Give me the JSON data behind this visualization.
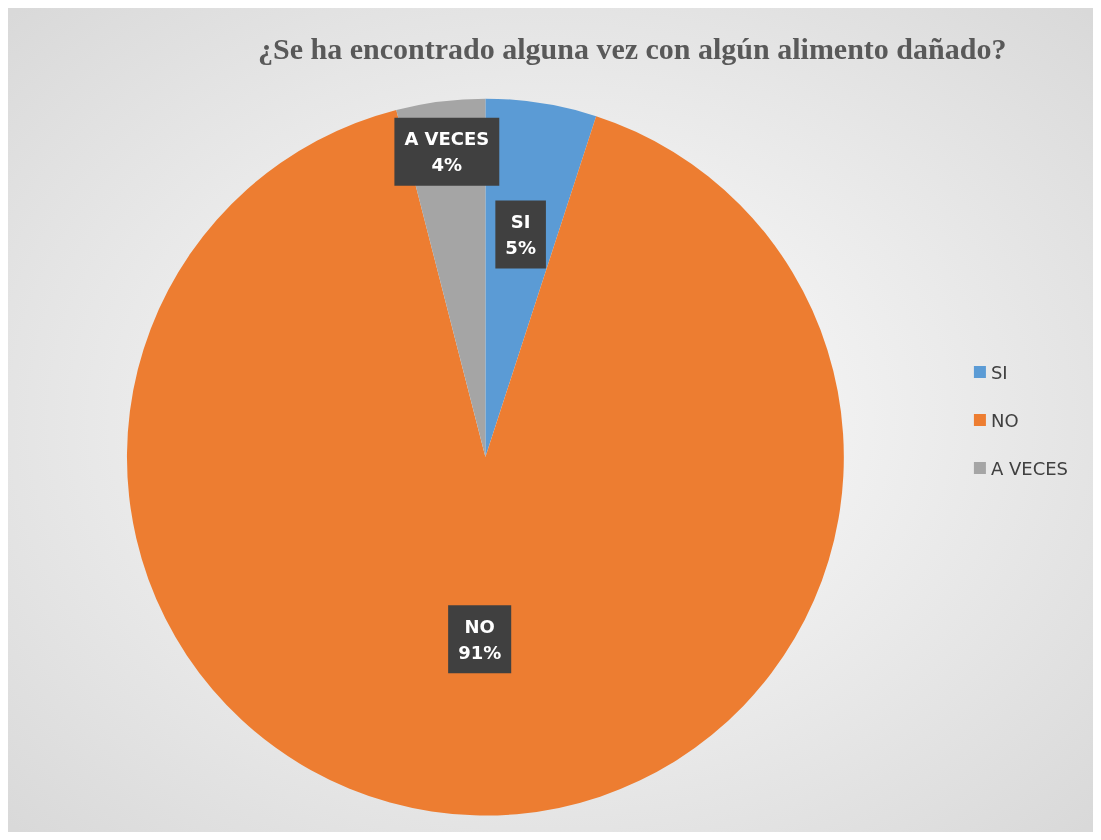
{
  "chart_data": {
    "type": "pie",
    "title": "¿Se ha encontrado alguna vez con algún alimento dañado?",
    "categories": [
      "SI",
      "NO",
      "A VECES"
    ],
    "values": [
      5,
      91,
      4
    ],
    "colors": [
      "#5b9bd5",
      "#ed7d31",
      "#a5a5a5"
    ],
    "value_labels": [
      "5%",
      "91%",
      "4%"
    ],
    "legend": "right"
  }
}
